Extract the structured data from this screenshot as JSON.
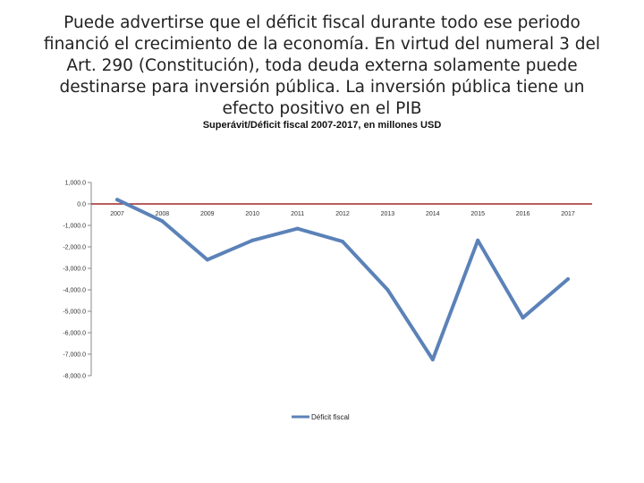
{
  "headline": "Puede advertirse que el déficit fiscal durante todo ese periodo financió el crecimiento de la economía. En virtud del numeral 3 del Art. 290 (Constitución), toda deuda externa solamente puede destinarse para inversión pública. La inversión pública tiene un efecto positivo en el PIB",
  "chart_data": {
    "type": "line",
    "title": "Superávit/Déficit fiscal 2007-2017, en millones USD",
    "xlabel": "",
    "ylabel": "",
    "categories": [
      "2007",
      "2008",
      "2009",
      "2010",
      "2011",
      "2012",
      "2013",
      "2014",
      "2015",
      "2016",
      "2017"
    ],
    "series": [
      {
        "name": "Déficit fiscal",
        "values": [
          200,
          -800,
          -2600,
          -1700,
          -1150,
          -1750,
          -4000,
          -7250,
          -1700,
          -5300,
          -3500
        ],
        "color": "#5b82b8"
      }
    ],
    "ylim": [
      -8000,
      1000
    ],
    "yticks": [
      1000,
      0,
      -1000,
      -2000,
      -3000,
      -4000,
      -5000,
      -6000,
      -7000,
      -8000
    ],
    "ytick_labels": [
      "1,000.0",
      "0.0",
      "-1,000.0",
      "-2,000.0",
      "-3,000.0",
      "-4,000.0",
      "-5,000.0",
      "-6,000.0",
      "-7,000.0",
      "-8,000.0"
    ],
    "grid": false,
    "legend_position": "bottom",
    "zero_line_color": "#a0282a"
  }
}
